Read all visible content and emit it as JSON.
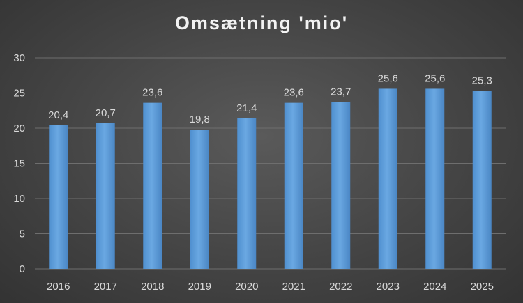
{
  "chart_data": {
    "type": "bar",
    "title": "Omsætning 'mio'",
    "categories": [
      "2016",
      "2017",
      "2018",
      "2019",
      "2020",
      "2021",
      "2022",
      "2023",
      "2024",
      "2025"
    ],
    "values": [
      20.4,
      20.7,
      23.6,
      19.8,
      21.4,
      23.6,
      23.7,
      25.6,
      25.6,
      25.3
    ],
    "data_labels": [
      "20,4",
      "20,7",
      "23,6",
      "19,8",
      "21,4",
      "23,6",
      "23,7",
      "25,6",
      "25,6",
      "25,3"
    ],
    "ylim": [
      0,
      30
    ],
    "yticks": [
      "0",
      "5",
      "10",
      "15",
      "20",
      "25",
      "30"
    ],
    "ytick_values": [
      0,
      5,
      10,
      15,
      20,
      25,
      30
    ],
    "grid": true,
    "legend": "none",
    "bar_color": "#5b9bd5",
    "background": "#444444"
  }
}
